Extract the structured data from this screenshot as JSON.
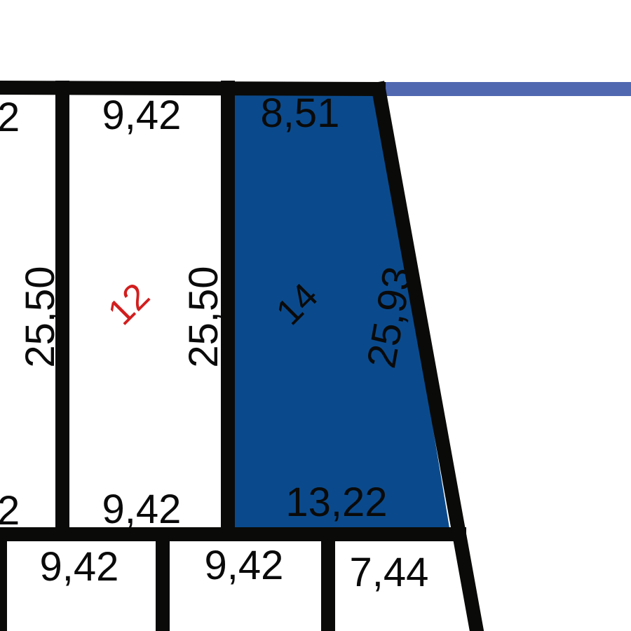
{
  "colors": {
    "line": "#0a0a08",
    "selected_fill": "#0a4a8c",
    "street_line": "#5068b0",
    "lot_label_red": "#d21e1e",
    "background": "#ffffff"
  },
  "lots": {
    "lot_11": {
      "top_width": "2",
      "bottom_width": "2",
      "side_length": "25,50"
    },
    "lot_12": {
      "number": "12",
      "top_width": "9,42",
      "bottom_width": "9,42",
      "side_length": "25,50"
    },
    "lot_14": {
      "number": "14",
      "selected": true,
      "top_width": "8,51",
      "bottom_width": "13,22",
      "side_length": "25,93"
    },
    "lower_row": [
      {
        "id": "lot-lower-1",
        "width": "9,42"
      },
      {
        "id": "lot-lower-2",
        "width": "9,42"
      },
      {
        "id": "lot-lower-3",
        "width": "7,44"
      }
    ]
  }
}
